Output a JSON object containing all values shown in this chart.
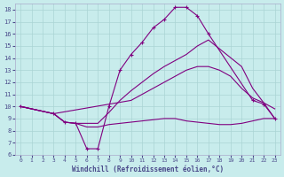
{
  "xlabel": "Windchill (Refroidissement éolien,°C)",
  "background_color": "#c8ecec",
  "grid_color": "#aad4d4",
  "line_color": "#800080",
  "xlim": [
    -0.5,
    23.5
  ],
  "ylim": [
    6,
    18.5
  ],
  "xticks": [
    0,
    1,
    2,
    3,
    4,
    5,
    6,
    7,
    8,
    9,
    10,
    11,
    12,
    13,
    14,
    15,
    16,
    17,
    18,
    19,
    20,
    21,
    22,
    23
  ],
  "yticks": [
    6,
    7,
    8,
    9,
    10,
    11,
    12,
    13,
    14,
    15,
    16,
    17,
    18
  ],
  "line1_x": [
    0,
    3,
    4,
    5,
    6,
    7,
    8,
    9,
    10,
    11,
    12,
    13,
    14,
    15,
    16,
    17,
    20,
    21,
    22,
    23
  ],
  "line1_y": [
    10,
    9.4,
    8.7,
    8.6,
    8.6,
    8.6,
    9.5,
    10.5,
    11.3,
    12.0,
    12.7,
    13.3,
    13.8,
    14.3,
    15.0,
    15.5,
    13.3,
    11.5,
    10.3,
    9.8
  ],
  "line2_x": [
    0,
    3,
    4,
    5,
    6,
    7,
    8,
    9,
    10,
    11,
    12,
    13,
    14,
    15,
    16,
    17,
    21,
    22,
    23
  ],
  "line2_y": [
    10,
    9.4,
    8.7,
    8.6,
    6.5,
    6.5,
    10.0,
    13.0,
    14.3,
    15.3,
    16.5,
    17.2,
    18.2,
    18.2,
    17.5,
    16.0,
    10.5,
    10.2,
    9.0
  ],
  "line3_x": [
    0,
    3,
    10,
    11,
    12,
    13,
    14,
    15,
    16,
    17,
    18,
    19,
    20,
    21,
    22,
    23
  ],
  "line3_y": [
    10,
    9.4,
    10.5,
    11.0,
    11.5,
    12.0,
    12.5,
    13.0,
    13.3,
    13.3,
    13.0,
    12.5,
    11.5,
    10.7,
    10.3,
    9.0
  ],
  "line4_x": [
    0,
    3,
    4,
    5,
    6,
    7,
    8,
    9,
    10,
    11,
    12,
    13,
    14,
    15,
    16,
    17,
    18,
    19,
    20,
    21,
    22,
    23
  ],
  "line4_y": [
    10,
    9.4,
    8.7,
    8.6,
    8.3,
    8.3,
    8.5,
    8.6,
    8.7,
    8.8,
    8.9,
    9.0,
    9.0,
    8.8,
    8.7,
    8.6,
    8.5,
    8.5,
    8.6,
    8.8,
    9.0,
    9.0
  ]
}
